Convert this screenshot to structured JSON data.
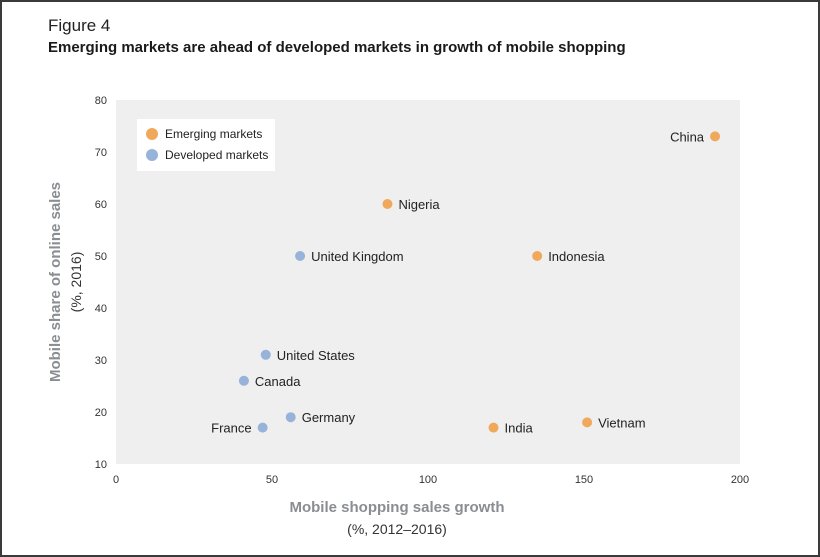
{
  "figure_label": "Figure 4",
  "title": "Emerging markets are ahead of developed markets in growth of mobile shopping",
  "colors": {
    "emerging": "#f0a95b",
    "developed": "#97b3d9",
    "plot_bg": "#efefef"
  },
  "chart_data": {
    "type": "scatter",
    "title": "Emerging markets are ahead of developed markets in growth of mobile shopping",
    "xlabel": "Mobile shopping sales growth",
    "xlabel_sub": "(%, 2012–2016)",
    "ylabel": "Mobile share of online sales",
    "ylabel_sub": "(%, 2016)",
    "xlim": [
      0,
      200
    ],
    "ylim": [
      10,
      80
    ],
    "xticks": [
      0,
      50,
      100,
      150,
      200
    ],
    "yticks": [
      10,
      20,
      30,
      40,
      50,
      60,
      70,
      80
    ],
    "grid": false,
    "legend_position": "top-left",
    "series": [
      {
        "name": "Emerging markets",
        "color": "#f0a95b",
        "points": [
          {
            "label": "China",
            "x": 192,
            "y": 73,
            "label_side": "left"
          },
          {
            "label": "Nigeria",
            "x": 87,
            "y": 60,
            "label_side": "right"
          },
          {
            "label": "Indonesia",
            "x": 135,
            "y": 50,
            "label_side": "right"
          },
          {
            "label": "India",
            "x": 121,
            "y": 17,
            "label_side": "right"
          },
          {
            "label": "Vietnam",
            "x": 151,
            "y": 18,
            "label_side": "right"
          }
        ]
      },
      {
        "name": "Developed markets",
        "color": "#97b3d9",
        "points": [
          {
            "label": "United Kingdom",
            "x": 59,
            "y": 50,
            "label_side": "right"
          },
          {
            "label": "United States",
            "x": 48,
            "y": 31,
            "label_side": "right"
          },
          {
            "label": "Canada",
            "x": 41,
            "y": 26,
            "label_side": "right"
          },
          {
            "label": "Germany",
            "x": 56,
            "y": 19,
            "label_side": "right"
          },
          {
            "label": "France",
            "x": 47,
            "y": 17,
            "label_side": "left"
          }
        ]
      }
    ]
  }
}
